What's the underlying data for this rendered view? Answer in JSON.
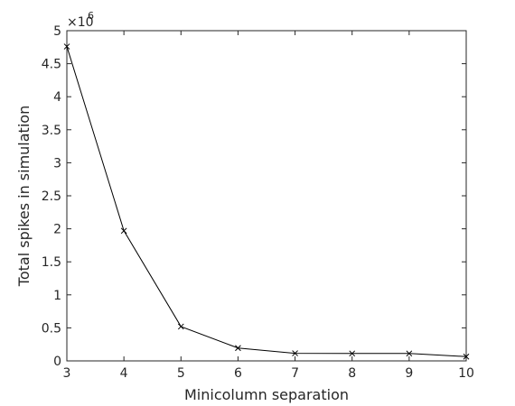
{
  "chart_data": {
    "type": "line",
    "xlabel": "Minicolumn separation",
    "ylabel": "Total spikes in simulation",
    "x": [
      3,
      4,
      5,
      6,
      7,
      8,
      9,
      10
    ],
    "series": [
      {
        "values": [
          4760000,
          1970000,
          520000,
          195000,
          115000,
          112000,
          112000,
          65000
        ],
        "color": "#000000",
        "marker": "x"
      }
    ],
    "xlim": [
      3,
      10
    ],
    "ylim": [
      0,
      5000000
    ],
    "xticks": [
      "3",
      "4",
      "5",
      "6",
      "7",
      "8",
      "9",
      "10"
    ],
    "yticks": [
      "0",
      "0.5",
      "1",
      "1.5",
      "2",
      "2.5",
      "3",
      "3.5",
      "4",
      "4.5",
      "5"
    ],
    "y_multiplier_base": "×10",
    "y_multiplier_exp": "6",
    "grid": false,
    "box": true
  }
}
